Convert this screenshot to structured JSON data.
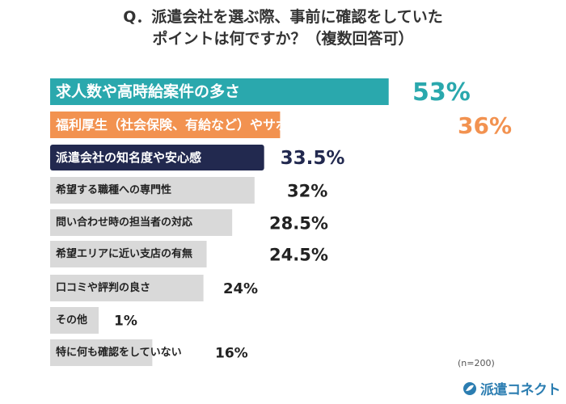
{
  "title": {
    "line1": "Q．派遣会社を選ぶ際、事前に確認をしていた",
    "line2": "ポイントは何ですか？（複数回答可）"
  },
  "note": "(n=200)",
  "brand": {
    "name": "派遣コネクト",
    "color": "#2b7db1"
  },
  "chart_data": {
    "type": "bar",
    "orientation": "horizontal",
    "categories": [
      "求人数や高時給案件の多さ",
      "福利厚生（社会保険、有給など）やサポート体制",
      "派遣会社の知名度や安心感",
      "希望する職種への専門性",
      "問い合わせ時の担当者の対応",
      "希望エリアに近い支店の有無",
      "口コミや評判の良さ",
      "その他",
      "特に何も確認をしていない"
    ],
    "values": [
      53,
      36,
      33.5,
      32,
      28.5,
      24.5,
      24,
      1,
      16
    ],
    "value_labels": [
      "53%",
      "36%",
      "33.5%",
      "32%",
      "28.5%",
      "24.5%",
      "24%",
      "1%",
      "16%"
    ],
    "unit": "%",
    "colors": [
      "#2aa8ad",
      "#f29250",
      "#22294f",
      "#d9d9d9",
      "#d9d9d9",
      "#d9d9d9",
      "#d9d9d9",
      "#d9d9d9",
      "#d9d9d9"
    ],
    "label_colors": [
      "#ffffff",
      "#ffffff",
      "#ffffff",
      "#222222",
      "#222222",
      "#222222",
      "#222222",
      "#222222",
      "#222222"
    ],
    "value_colors": [
      "#2aa8ad",
      "#f29250",
      "#22294f",
      "#222222",
      "#222222",
      "#222222",
      "#222222",
      "#222222",
      "#222222"
    ]
  }
}
